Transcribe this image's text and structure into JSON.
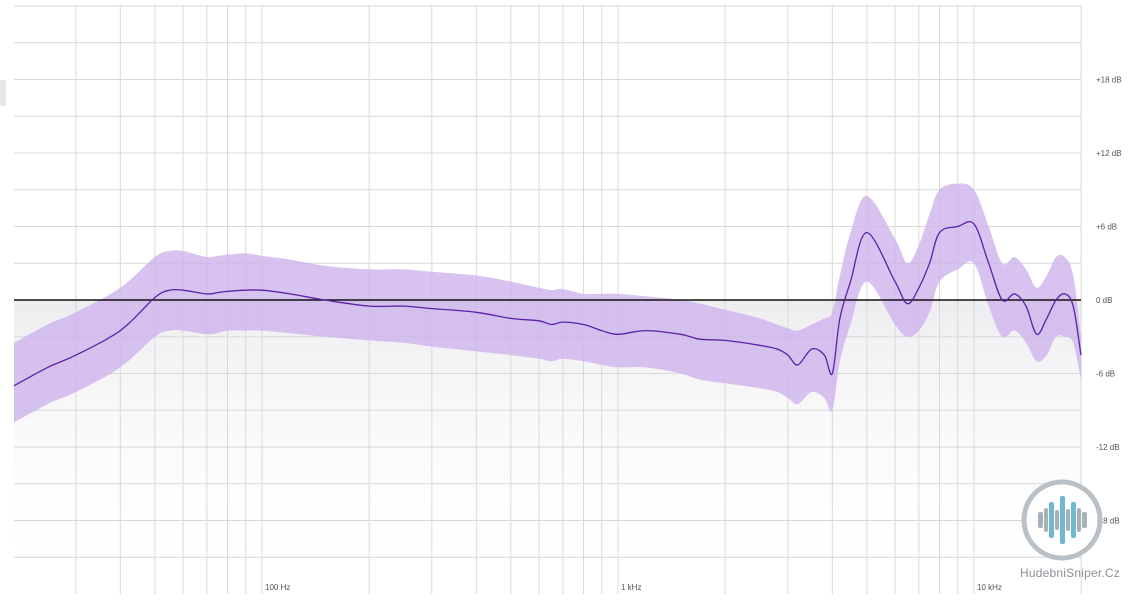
{
  "chart_data": {
    "type": "line",
    "x_scale": "log",
    "xlim": [
      20,
      20000
    ],
    "ylim": [
      -21,
      24
    ],
    "x_ticks": [
      {
        "value": 100,
        "label": "100 Hz"
      },
      {
        "value": 1000,
        "label": "1 kHz"
      },
      {
        "value": 10000,
        "label": "10 kHz"
      }
    ],
    "y_ticks": [
      {
        "value": 18,
        "label": "+18 dB"
      },
      {
        "value": 12,
        "label": "+12 dB"
      },
      {
        "value": 6,
        "label": "+6 dB"
      },
      {
        "value": 0,
        "label": "0 dB"
      },
      {
        "value": -6,
        "label": "-6 dB"
      },
      {
        "value": -12,
        "label": "-12 dB"
      },
      {
        "value": -18,
        "label": "-18 dB"
      }
    ],
    "reference_line_db": 0,
    "grid": true,
    "colors": {
      "line": "#5a22a8",
      "band": "#cdb3ec",
      "reference": "#111111",
      "grid": "#d9d9d9"
    },
    "series": [
      {
        "x": [
          20,
          25,
          30,
          40,
          50,
          55,
          60,
          70,
          75,
          80,
          90,
          100,
          120,
          150,
          200,
          250,
          300,
          400,
          500,
          600,
          650,
          700,
          800,
          900,
          1000,
          1200,
          1500,
          1700,
          2000,
          2500,
          2800,
          3000,
          3200,
          3500,
          3800,
          4000,
          4200,
          4500,
          5000,
          6000,
          6500,
          7000,
          7500,
          8000,
          9000,
          10000,
          11000,
          12000,
          13000,
          14000,
          15000,
          16000,
          17000,
          18000,
          19000,
          20000
        ],
        "y": [
          -7,
          -5.5,
          -4.5,
          -2.5,
          0.2,
          0.8,
          0.8,
          0.5,
          0.6,
          0.7,
          0.8,
          0.8,
          0.5,
          0,
          -0.5,
          -0.5,
          -0.7,
          -1.0,
          -1.5,
          -1.7,
          -2.0,
          -1.8,
          -2.0,
          -2.5,
          -2.8,
          -2.5,
          -2.8,
          -3.2,
          -3.3,
          -3.7,
          -4.0,
          -4.5,
          -5.3,
          -4.0,
          -4.5,
          -6.0,
          -1.5,
          1.5,
          5.5,
          1.5,
          -0.3,
          1.0,
          3.0,
          5.5,
          6.0,
          6.2,
          3.0,
          0,
          0.5,
          -0.5,
          -2.8,
          -1.5,
          0,
          0.5,
          -0.5,
          -4.5
        ],
        "upper": [
          -3.5,
          -2,
          -1,
          1,
          3.5,
          4,
          4,
          3.5,
          3.6,
          3.7,
          3.8,
          3.6,
          3.3,
          2.8,
          2.5,
          2.5,
          2.3,
          2.0,
          1.5,
          1.0,
          0.8,
          0.9,
          0.5,
          0.5,
          0.5,
          0.3,
          0,
          -0.3,
          -0.8,
          -1.5,
          -2.0,
          -2.3,
          -2.5,
          -2.0,
          -1.5,
          -1.0,
          2.0,
          5.5,
          8.5,
          5.0,
          3.0,
          4.5,
          7.0,
          9.0,
          9.5,
          9.0,
          6.0,
          3.0,
          3.5,
          2.5,
          1.0,
          2.0,
          3.5,
          3.5,
          2.0,
          -3.0
        ],
        "lower": [
          -10,
          -8.5,
          -7.5,
          -5.5,
          -3.0,
          -2.5,
          -2.5,
          -2.8,
          -2.7,
          -2.5,
          -2.5,
          -2.5,
          -2.7,
          -3.0,
          -3.3,
          -3.5,
          -3.8,
          -4.2,
          -4.5,
          -4.8,
          -5.0,
          -4.8,
          -5.0,
          -5.3,
          -5.5,
          -5.5,
          -6.0,
          -6.5,
          -6.8,
          -7.2,
          -7.5,
          -8.0,
          -8.5,
          -7.5,
          -8.0,
          -9.0,
          -5.0,
          -2.0,
          1.5,
          -2.0,
          -3.0,
          -2.5,
          -1.0,
          1.5,
          2.5,
          3.0,
          -0.5,
          -3.0,
          -2.5,
          -3.5,
          -5.0,
          -4.5,
          -3.0,
          -3.0,
          -3.5,
          -6.5
        ]
      }
    ]
  },
  "logo": {
    "text": "HudebniSniper.Cz",
    "icon": "waveform-bars-icon"
  }
}
